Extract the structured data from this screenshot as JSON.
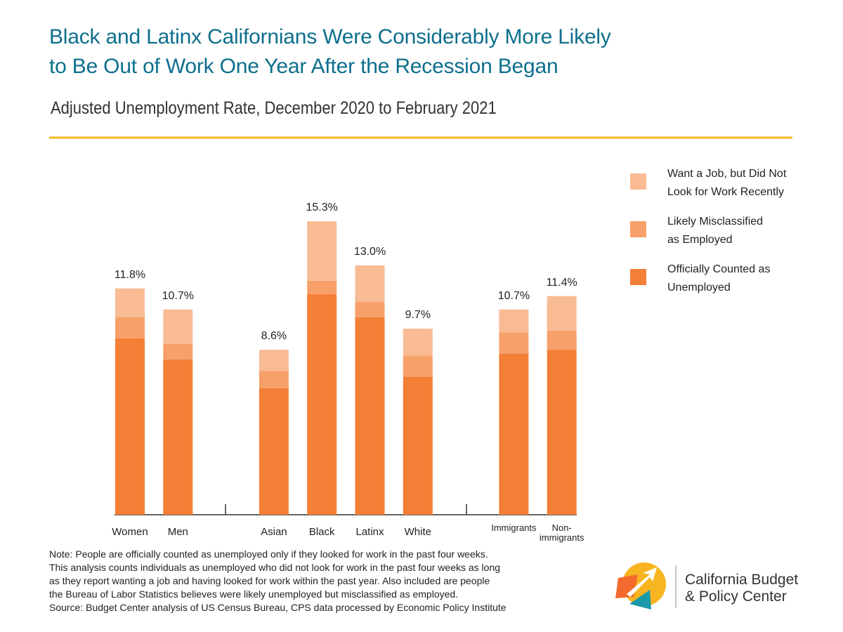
{
  "chart_data": {
    "type": "stacked-bar",
    "title": "Black and Latinx Californians Were Considerably More Likely\nto Be Out of Work One Year After the Recession Began",
    "subtitle": "Adjusted Unemployment Rate, December 2020 to February 2021",
    "categories": [
      "Women",
      "Men",
      "Asian",
      "Black",
      "Latinx",
      "White",
      "Immigrants",
      "Non-\nimmigrants"
    ],
    "series": [
      {
        "name": "Officially Counted as\nUnemployed",
        "color": "#f47f36",
        "values": [
          9.2,
          8.1,
          6.6,
          11.5,
          10.3,
          7.2,
          8.4,
          8.6
        ]
      },
      {
        "name": "Likely Misclassified\nas Employed",
        "color": "#f7a06a",
        "values": [
          1.1,
          0.8,
          0.9,
          0.7,
          0.8,
          1.1,
          1.1,
          1.0
        ]
      },
      {
        "name": "Want a Job, but Did Not\nLook for Work Recently",
        "color": "#f9bb93",
        "values": [
          1.5,
          1.8,
          1.1,
          3.1,
          1.9,
          1.4,
          1.2,
          1.8
        ]
      }
    ],
    "totals": {
      "values": [
        11.8,
        10.7,
        8.6,
        15.3,
        13.0,
        9.7,
        10.7,
        11.4
      ],
      "value_labels": [
        "11.8%",
        "10.7%",
        "8.6%",
        "15.3%",
        "13.0%",
        "9.7%",
        "10.7%",
        "11.4%"
      ]
    },
    "ylim": [
      0,
      16
    ],
    "notes": [
      "Note: People are officially counted as unemployed only if they looked for work in the past four weeks.",
      "This analysis counts individuals as unemployed who did not look for work in the past four weeks as long",
      "as they report wanting a job and having looked for work within the past year. Also included are people",
      "the Bureau of Labor Statistics believes were likely unemployed but misclassified as employed.",
      "Source: Budget Center analysis of US Census Bureau, CPS data processed by Economic Policy Institute"
    ],
    "logo": [
      "California Budget",
      "& Policy Center"
    ]
  }
}
